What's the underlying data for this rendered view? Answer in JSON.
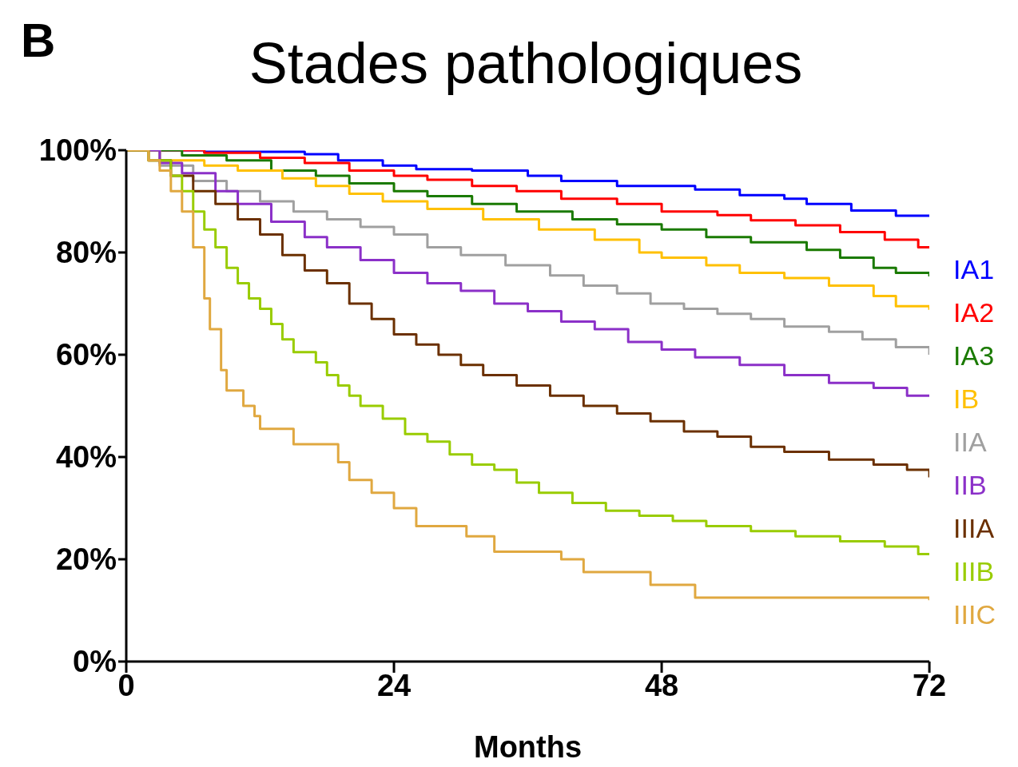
{
  "chart_data": {
    "type": "step",
    "title": "Stades pathologiques",
    "annotations": [
      "B"
    ],
    "xlabel": "Months",
    "xlim": [
      0,
      72
    ],
    "xticks": [
      0,
      24,
      48,
      72
    ],
    "ylim": [
      0,
      100
    ],
    "yticks": [
      {
        "value": 0,
        "label": "0%"
      },
      {
        "value": 20,
        "label": "20%"
      },
      {
        "value": 40,
        "label": "40%"
      },
      {
        "value": 60,
        "label": "60%"
      },
      {
        "value": 80,
        "label": "80%"
      },
      {
        "value": 100,
        "label": "100%"
      }
    ],
    "legend": "right",
    "marker": "none",
    "line_style": "solid",
    "series": [
      {
        "name": "IA1",
        "color": "#0000ff",
        "x": [
          0,
          7,
          16,
          19,
          23,
          26,
          31,
          36,
          39,
          44,
          51,
          55,
          59,
          61,
          65,
          69,
          72
        ],
        "values": [
          100,
          99.7,
          99.2,
          98,
          97,
          96.3,
          96,
          95,
          94,
          93,
          92.3,
          91.2,
          90.5,
          89.5,
          88.2,
          87.2,
          87
        ]
      },
      {
        "name": "IA2",
        "color": "#ff0000",
        "x": [
          0,
          7,
          12,
          16,
          20,
          24,
          27,
          31,
          35,
          39,
          44,
          48,
          53,
          56,
          60,
          64,
          68,
          71,
          72
        ],
        "values": [
          100,
          99.5,
          98.5,
          97.5,
          96,
          95,
          94.2,
          93,
          92,
          90.5,
          89.5,
          88,
          87.3,
          86.3,
          85.3,
          84,
          82.5,
          81,
          80.8
        ]
      },
      {
        "name": "IA3",
        "color": "#1a7a00",
        "x": [
          0,
          5,
          9,
          13,
          17,
          20,
          24,
          27,
          31,
          35,
          40,
          44,
          48,
          52,
          56,
          61,
          64,
          67,
          69,
          72
        ],
        "values": [
          100,
          99,
          98,
          96,
          95,
          93.5,
          92,
          91,
          89.5,
          88,
          86.5,
          85.5,
          84.5,
          83,
          82,
          80.5,
          79,
          77,
          76,
          75.3
        ]
      },
      {
        "name": "IB",
        "color": "#ffc000",
        "x": [
          0,
          3,
          7,
          10,
          14,
          17,
          20,
          23,
          27,
          32,
          37,
          42,
          46,
          48,
          52,
          55,
          59,
          63,
          67,
          69,
          72
        ],
        "values": [
          100,
          98,
          97,
          96,
          94.5,
          93,
          91.5,
          90,
          88.5,
          86.5,
          84.5,
          82.5,
          80,
          79,
          77.5,
          76,
          75,
          73.5,
          71.5,
          69.5,
          68.8
        ]
      },
      {
        "name": "IIA",
        "color": "#a0a0a0",
        "x": [
          0,
          3,
          6,
          9,
          12,
          15,
          18,
          21,
          24,
          27,
          30,
          34,
          38,
          41,
          44,
          47,
          50,
          53,
          56,
          59,
          63,
          66,
          69,
          72
        ],
        "values": [
          100,
          97,
          94,
          92,
          90,
          88,
          86.5,
          85,
          83.5,
          81,
          79.5,
          77.5,
          75.5,
          73.5,
          72,
          70,
          69,
          68,
          67,
          65.5,
          64.5,
          63,
          61.5,
          60
        ]
      },
      {
        "name": "IIB",
        "color": "#8b30c8",
        "x": [
          0,
          3,
          5,
          8,
          10,
          13,
          16,
          18,
          21,
          24,
          27,
          30,
          33,
          36,
          39,
          42,
          45,
          48,
          51,
          55,
          59,
          63,
          67,
          70,
          72
        ],
        "values": [
          100,
          97.5,
          95.5,
          92,
          89.5,
          86,
          83,
          81,
          78.5,
          76,
          74,
          72.5,
          70,
          68.5,
          66.5,
          65,
          62.5,
          61,
          59.5,
          58,
          56,
          54.5,
          53.5,
          52,
          52
        ]
      },
      {
        "name": "IIIA",
        "color": "#6b3000",
        "x": [
          0,
          2,
          4,
          6,
          8,
          10,
          12,
          14,
          16,
          18,
          20,
          22,
          24,
          26,
          28,
          30,
          32,
          35,
          38,
          41,
          44,
          47,
          50,
          53,
          56,
          59,
          63,
          67,
          70,
          72
        ],
        "values": [
          100,
          98,
          95,
          92,
          89.5,
          86.5,
          83.5,
          79.5,
          76.5,
          74,
          70,
          67,
          64,
          62,
          60,
          58,
          56,
          54,
          52,
          50,
          48.5,
          47,
          45,
          44,
          42,
          41,
          39.5,
          38.5,
          37.5,
          36
        ]
      },
      {
        "name": "IIIB",
        "color": "#99cc00",
        "x": [
          0,
          2,
          4,
          5,
          6,
          7,
          8,
          9,
          10,
          11,
          12,
          13,
          14,
          15,
          17,
          18,
          19,
          20,
          21,
          23,
          25,
          27,
          29,
          31,
          33,
          35,
          37,
          40,
          43,
          46,
          49,
          52,
          56,
          60,
          64,
          68,
          71,
          72
        ],
        "values": [
          100,
          98,
          95,
          92,
          88,
          84.5,
          81,
          77,
          74,
          71,
          69,
          66,
          63,
          60.5,
          58.5,
          56,
          54,
          52,
          50,
          47.5,
          44.5,
          43,
          40.5,
          38.5,
          37.5,
          35,
          33,
          31,
          29.5,
          28.5,
          27.5,
          26.5,
          25.5,
          24.5,
          23.5,
          22.5,
          21,
          20.8
        ]
      },
      {
        "name": "IIIC",
        "color": "#e0a840",
        "x": [
          0,
          2,
          3,
          4,
          5,
          6,
          7,
          7.5,
          8.5,
          9,
          10.5,
          11.5,
          12,
          15,
          19,
          20,
          22,
          24,
          26,
          30.5,
          33,
          39,
          41,
          47,
          51,
          72
        ],
        "values": [
          100,
          98,
          96,
          92,
          88,
          81,
          71,
          65,
          57,
          53,
          50,
          48,
          45.5,
          42.5,
          39,
          35.5,
          33,
          30,
          26.5,
          24.5,
          21.5,
          20,
          17.5,
          15,
          12.5,
          12
        ]
      }
    ]
  }
}
